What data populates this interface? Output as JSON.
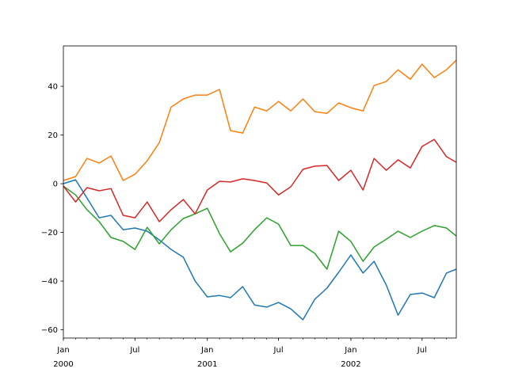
{
  "chart_data": {
    "type": "line",
    "title": "",
    "xlabel": "",
    "ylabel": "",
    "xlim": [
      "2000-01-01",
      "2002-09-26"
    ],
    "ylim": [
      -63.4,
      56.6
    ],
    "grid": false,
    "legend": "none",
    "x": [
      "2000-01-01",
      "2000-02-01",
      "2000-03-01",
      "2000-04-01",
      "2000-05-01",
      "2000-06-01",
      "2000-07-01",
      "2000-08-01",
      "2000-09-01",
      "2000-10-01",
      "2000-11-01",
      "2000-12-01",
      "2001-01-01",
      "2001-02-01",
      "2001-03-01",
      "2001-04-01",
      "2001-05-01",
      "2001-06-01",
      "2001-07-01",
      "2001-08-01",
      "2001-09-01",
      "2001-10-01",
      "2001-11-01",
      "2001-12-01",
      "2002-01-01",
      "2002-02-01",
      "2002-03-01",
      "2002-04-01",
      "2002-05-01",
      "2002-06-01",
      "2002-07-01",
      "2002-08-01",
      "2002-09-01",
      "2002-09-26"
    ],
    "series": [
      {
        "color": "#1f77b4",
        "values": [
          0,
          1.6,
          -5.9,
          -14.0,
          -13.0,
          -18.9,
          -18.2,
          -19.5,
          -23.1,
          -27.0,
          -30.2,
          -40.0,
          -46.5,
          -45.9,
          -46.8,
          -42.3,
          -49.8,
          -50.7,
          -48.8,
          -51.4,
          -55.9,
          -47.5,
          -42.9,
          -36.4,
          -29.3,
          -36.7,
          -31.9,
          -41.6,
          -54.0,
          -45.5,
          -44.9,
          -46.8,
          -36.7,
          -35.1
        ]
      },
      {
        "color": "#ff7f0e",
        "values": [
          1.3,
          2.9,
          10.4,
          8.5,
          11.4,
          1.3,
          3.9,
          9.4,
          16.9,
          31.5,
          34.8,
          36.4,
          36.4,
          38.7,
          21.8,
          20.8,
          31.5,
          29.9,
          33.8,
          29.9,
          34.8,
          29.6,
          28.9,
          33.2,
          31.2,
          29.9,
          40.3,
          42.0,
          46.8,
          42.9,
          49.1,
          43.6,
          46.8,
          50.7
        ]
      },
      {
        "color": "#2ca02c",
        "values": [
          -1.0,
          -4.6,
          -10.7,
          -15.6,
          -22.1,
          -23.7,
          -27.0,
          -17.9,
          -24.7,
          -18.9,
          -14.3,
          -12.4,
          -10.1,
          -20.5,
          -28.0,
          -24.4,
          -18.9,
          -14.0,
          -16.6,
          -25.4,
          -25.4,
          -28.6,
          -35.1,
          -19.5,
          -23.7,
          -31.9,
          -26.0,
          -22.8,
          -19.5,
          -22.1,
          -19.5,
          -17.2,
          -18.2,
          -21.5
        ]
      },
      {
        "color": "#d62728",
        "values": [
          -1.0,
          -7.5,
          -1.6,
          -2.9,
          -2.0,
          -13.0,
          -14.0,
          -7.5,
          -15.6,
          -10.7,
          -6.5,
          -12.4,
          -2.6,
          1.0,
          0.7,
          2.0,
          1.3,
          0.3,
          -4.6,
          -1.3,
          5.9,
          7.2,
          7.5,
          1.3,
          5.5,
          -2.6,
          10.4,
          5.5,
          9.8,
          6.5,
          15.3,
          18.2,
          11.1,
          8.8
        ]
      }
    ],
    "y_ticks": [
      {
        "value": -60,
        "label": "−60"
      },
      {
        "value": -40,
        "label": "−40"
      },
      {
        "value": -20,
        "label": "−20"
      },
      {
        "value": 0,
        "label": "0"
      },
      {
        "value": 20,
        "label": "20"
      },
      {
        "value": 40,
        "label": "40"
      }
    ],
    "x_ticks": [
      {
        "date": "2000-01-01",
        "label": "Jan",
        "year": "2000"
      },
      {
        "date": "2000-07-01",
        "label": "Jul",
        "year": ""
      },
      {
        "date": "2001-01-01",
        "label": "Jan",
        "year": "2001"
      },
      {
        "date": "2001-07-01",
        "label": "Jul",
        "year": ""
      },
      {
        "date": "2002-01-01",
        "label": "Jan",
        "year": "2002"
      },
      {
        "date": "2002-07-01",
        "label": "Jul",
        "year": ""
      }
    ]
  }
}
